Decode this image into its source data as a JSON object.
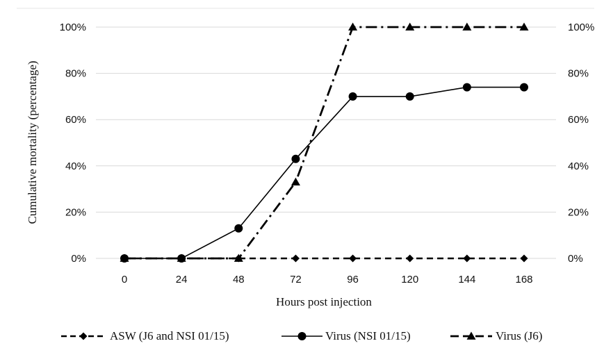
{
  "chart_data": {
    "type": "line",
    "xlabel": "Hours post injection",
    "ylabel": "Cumulative mortality (percentage)",
    "x": [
      0,
      24,
      48,
      72,
      96,
      120,
      144,
      168
    ],
    "x_tick_labels": [
      "0",
      "24",
      "48",
      "72",
      "96",
      "120",
      "144",
      "168"
    ],
    "ylim": [
      0,
      100
    ],
    "y_tick_labels": [
      "0%",
      "20%",
      "40%",
      "60%",
      "80%",
      "100%"
    ],
    "y2_tick_labels": [
      "0%",
      "20%",
      "40%",
      "60%",
      "80%",
      "100%"
    ],
    "grid": "horizontal",
    "legend_position": "bottom",
    "series": [
      {
        "name": "ASW (J6 and NSI 01/15)",
        "marker": "diamond",
        "line_style": "dashed",
        "values": [
          0,
          0,
          0,
          0,
          0,
          0,
          0,
          0
        ]
      },
      {
        "name": "Virus (NSI 01/15)",
        "marker": "circle",
        "line_style": "solid",
        "values": [
          0,
          0,
          13,
          43,
          70,
          70,
          74,
          74
        ]
      },
      {
        "name": "Virus (J6)",
        "marker": "triangle",
        "line_style": "dash-dot",
        "values": [
          0,
          0,
          0,
          33,
          100,
          100,
          100,
          100
        ]
      }
    ],
    "colors": {
      "line": "#000000",
      "grid": "#d9d9d9"
    }
  }
}
